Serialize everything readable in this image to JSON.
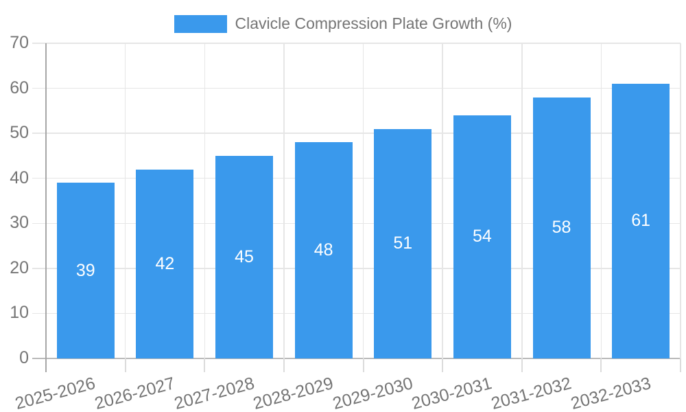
{
  "chart_data": {
    "type": "bar",
    "title": "Clavicle Compression Plate Growth (%)",
    "categories": [
      "2025-2026",
      "2026-2027",
      "2027-2028",
      "2028-2029",
      "2029-2030",
      "2030-2031",
      "2031-2032",
      "2032-2033"
    ],
    "values": [
      39,
      42,
      45,
      48,
      51,
      54,
      58,
      61
    ],
    "value_labels": [
      "39",
      "42",
      "45",
      "48",
      "51",
      "54",
      "58",
      "61"
    ],
    "xlabel": "",
    "ylabel": "",
    "ylim": [
      0,
      70
    ],
    "yticks": [
      0,
      10,
      20,
      30,
      40,
      50,
      60,
      70
    ],
    "grid": true,
    "legend_position": "top",
    "x_label_rotation_deg": -15,
    "colors": {
      "bar": "#3A99EC",
      "value_label": "#FFFFFF",
      "axis_text": "#757575",
      "grid_line": "#E6E6E6",
      "y_axis_line": "#A6A6A6",
      "zero_line": "#B9B9B9",
      "x_tick_mark": "#DCDCDC",
      "background": "#FFFFFF"
    }
  },
  "legend": {
    "label": "Clavicle Compression Plate Growth (%)"
  }
}
